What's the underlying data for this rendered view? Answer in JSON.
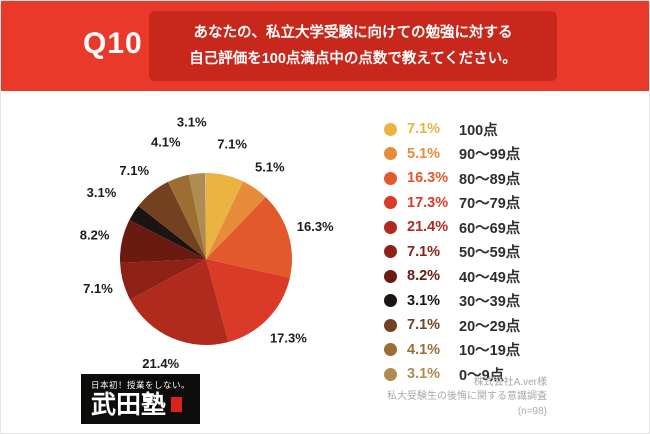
{
  "header": {
    "question_number": "Q10",
    "question_line1": "あなたの、私立大学受験に向けての勉強に対する",
    "question_line2": "自己評価を100点満点中の点数で教えてください。"
  },
  "colors": {
    "header_bg": "#E8392B",
    "question_box_bg": "#C8281C"
  },
  "chart_data": {
    "type": "pie",
    "unit": "%",
    "legend_position": "right",
    "start_angle": "top",
    "direction": "clockwise",
    "slices": [
      {
        "label": "100点",
        "value": 7.1,
        "color": "#EBB342"
      },
      {
        "label": "90〜99点",
        "value": 5.1,
        "color": "#E78C3B"
      },
      {
        "label": "80〜89点",
        "value": 16.3,
        "color": "#E2592B"
      },
      {
        "label": "70〜79点",
        "value": 17.3,
        "color": "#D93B28"
      },
      {
        "label": "60〜69点",
        "value": 21.4,
        "color": "#B02A1E"
      },
      {
        "label": "50〜59点",
        "value": 7.1,
        "color": "#8E2016"
      },
      {
        "label": "40〜49点",
        "value": 8.2,
        "color": "#6A1A0F"
      },
      {
        "label": "30〜39点",
        "value": 3.1,
        "color": "#1B1412"
      },
      {
        "label": "20〜29点",
        "value": 7.1,
        "color": "#734020"
      },
      {
        "label": "10〜19点",
        "value": 4.1,
        "color": "#9C6E33"
      },
      {
        "label": "0〜9点",
        "value": 3.1,
        "color": "#AF8C50"
      }
    ]
  },
  "logo": {
    "tagline": "日本初！授業をしない。",
    "name": "武田塾"
  },
  "credit": {
    "line1": "株式会社A.ver様",
    "line2": "私大受験生の後悔に関する意識調査",
    "line3": "(n=98)"
  }
}
